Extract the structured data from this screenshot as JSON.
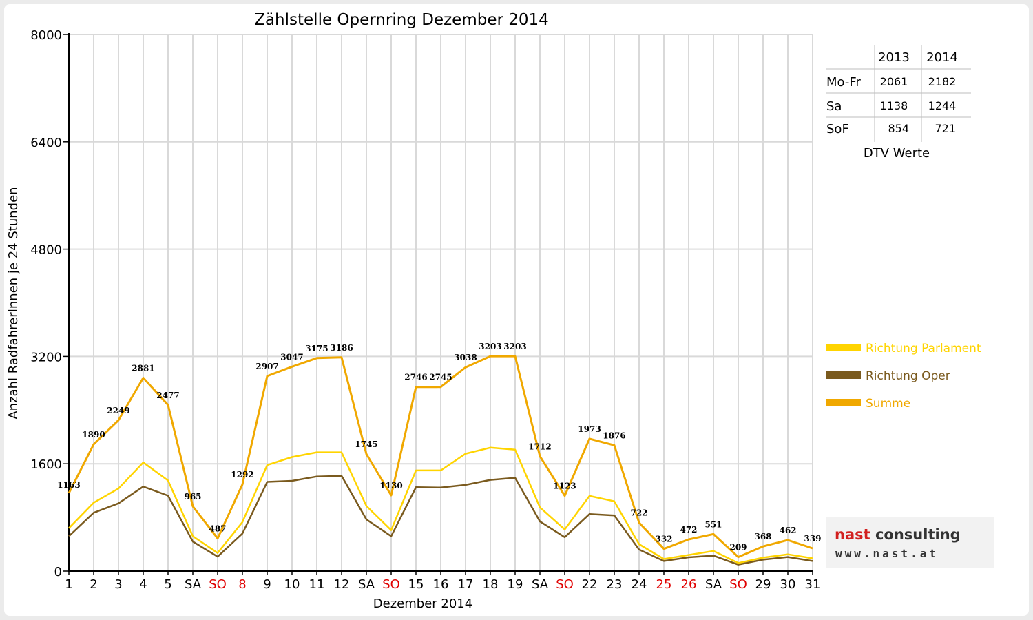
{
  "chart_data": {
    "type": "line",
    "title": "Zählstelle Opernring Dezember 2014",
    "xlabel": "Dezember 2014",
    "ylabel": "Anzahl RadfahrerInnen je 24 Stunden",
    "ylim": [
      0,
      8000
    ],
    "yticks": [
      "0",
      "1600",
      "3200",
      "4800",
      "6400",
      "8000"
    ],
    "grid": true,
    "legend_position": "right",
    "categories": [
      "1",
      "2",
      "3",
      "4",
      "5",
      "SA",
      "SO",
      "8",
      "9",
      "10",
      "11",
      "12",
      "SA",
      "SO",
      "15",
      "16",
      "17",
      "18",
      "19",
      "SA",
      "SO",
      "22",
      "23",
      "24",
      "25",
      "26",
      "SA",
      "SO",
      "29",
      "30",
      "31"
    ],
    "red_categories": [
      6,
      7,
      13,
      20,
      24,
      25,
      27
    ],
    "series": [
      {
        "name": "Richtung Parlament",
        "color": "#ffd400",
        "values": [
          640,
          1020,
          1230,
          1620,
          1350,
          520,
          270,
          730,
          1580,
          1700,
          1770,
          1770,
          970,
          610,
          1500,
          1500,
          1750,
          1840,
          1810,
          950,
          620,
          1120,
          1040,
          400,
          180,
          240,
          300,
          120,
          200,
          250,
          190
        ]
      },
      {
        "name": "Richtung Oper",
        "color": "#7a5a1e",
        "values": [
          520,
          870,
          1010,
          1260,
          1125,
          440,
          215,
          560,
          1330,
          1345,
          1410,
          1420,
          770,
          520,
          1250,
          1245,
          1285,
          1360,
          1390,
          740,
          505,
          850,
          830,
          320,
          150,
          205,
          230,
          95,
          170,
          210,
          150
        ]
      },
      {
        "name": "Summe",
        "color": "#f0a800",
        "values": [
          1163,
          1890,
          2249,
          2881,
          2477,
          965,
          487,
          1292,
          2907,
          3047,
          3175,
          3186,
          1745,
          1130,
          2746,
          2745,
          3038,
          3203,
          3203,
          1712,
          1123,
          1973,
          1876,
          722,
          332,
          472,
          551,
          209,
          368,
          462,
          339
        ]
      }
    ],
    "data_labels": [
      "1163",
      "1890",
      "2249",
      "2881",
      "2477",
      "965",
      "487",
      "1292",
      "2907",
      "3047",
      "3175",
      "3186",
      "1745",
      "1130",
      "2746",
      "2745",
      "3038",
      "3203",
      "3203",
      "1712",
      "1123",
      "1973",
      "1876",
      "722",
      "332",
      "472",
      "551",
      "209",
      "368",
      "462",
      "339"
    ]
  },
  "dtv_table": {
    "years": [
      "2013",
      "2014"
    ],
    "rows": [
      {
        "label": "Mo-Fr",
        "v2013": "2061",
        "v2014": "2182"
      },
      {
        "label": "Sa",
        "v2013": "1138",
        "v2014": "1244"
      },
      {
        "label": "SoF",
        "v2013": "854",
        "v2014": "721"
      }
    ],
    "caption": "DTV Werte"
  },
  "logo": {
    "brand_part1": "nast",
    "brand_part2": "consulting",
    "url": "www.nast.at"
  }
}
